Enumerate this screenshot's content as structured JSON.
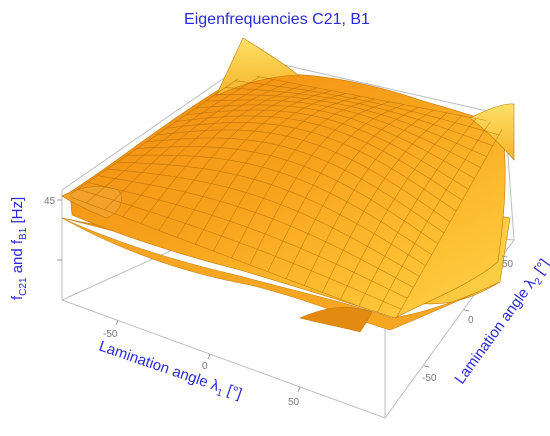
{
  "chart_data": {
    "type": "surface3d",
    "title": "Eigenfrequencies C21, B1",
    "xlabel": {
      "main": "Lamination angle λ",
      "sub": "1",
      "unit": " [°]"
    },
    "ylabel": {
      "main": "Lamination angle λ",
      "sub": "2",
      "unit": " [°]"
    },
    "zlabel": {
      "p1": "f",
      "s1": "C21",
      "p2": " and f",
      "s2": "B1",
      "p3": " [Hz]"
    },
    "x_range": [
      -90,
      90
    ],
    "y_range": [
      -90,
      90
    ],
    "x_ticks": [
      "-50",
      "0",
      "50"
    ],
    "y_ticks": [
      "-50",
      "0",
      "50"
    ],
    "z_ticks": [
      "45"
    ],
    "surface_color": "#f7a21b",
    "mesh_color": "#b36a00",
    "text_color": "#2a2ad8"
  }
}
